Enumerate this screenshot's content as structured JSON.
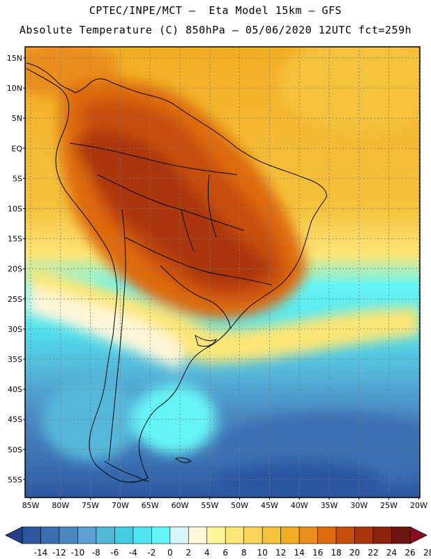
{
  "header": {
    "line1": "CPTEC/INPE/MCT –  Eta Model 15km – GFS",
    "line2": "Absolute Temperature (C) 850hPa – 05/06/2020 12UTC fct=259h"
  },
  "axes": {
    "lat_labels": [
      "15N",
      "10N",
      "5N",
      "EQ",
      "5S",
      "10S",
      "15S",
      "20S",
      "25S",
      "30S",
      "35S",
      "40S",
      "45S",
      "50S",
      "55S"
    ],
    "lon_labels": [
      "85W",
      "80W",
      "75W",
      "70W",
      "65W",
      "60W",
      "55W",
      "50W",
      "45W",
      "40W",
      "35W",
      "30W",
      "25W",
      "20W"
    ]
  },
  "colorbar": {
    "labels": [
      "-14",
      "-12",
      "-10",
      "-8",
      "-6",
      "-4",
      "-2",
      "0",
      "2",
      "4",
      "6",
      "8",
      "10",
      "12",
      "14",
      "16",
      "18",
      "20",
      "22",
      "24",
      "26",
      "28"
    ],
    "colors": [
      "#233f8c",
      "#2c57a0",
      "#3a70b3",
      "#4a88c4",
      "#5aa1d2",
      "#54b7da",
      "#45cbe6",
      "#4fe3ef",
      "#66f5f7",
      "#d6f6fb",
      "#fff7d9",
      "#fff59c",
      "#fde676",
      "#f9d55a",
      "#f5c23e",
      "#f2ad22",
      "#ea8d1b",
      "#de6a0f",
      "#c84e0c",
      "#ab360b",
      "#8c220e",
      "#6e1710",
      "#8a0c24"
    ]
  },
  "map": {
    "continent": "South America",
    "field": "850hPa temperature"
  }
}
